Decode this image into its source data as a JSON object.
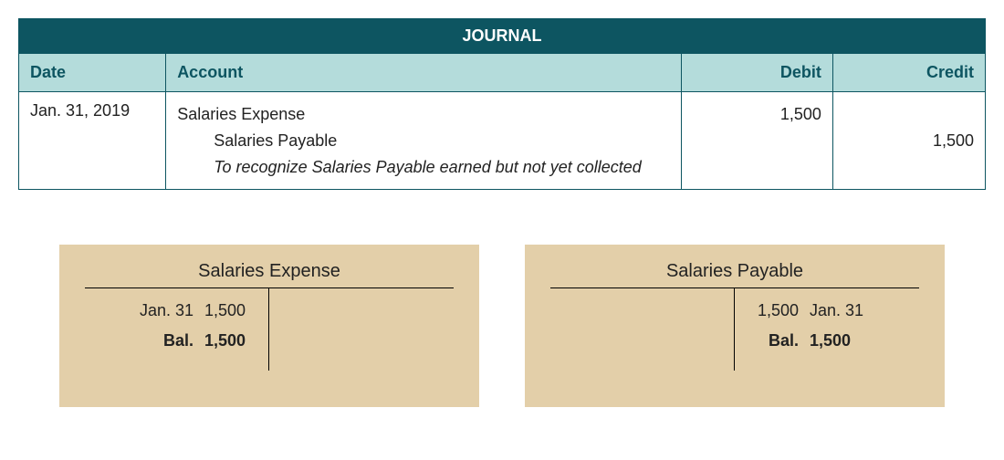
{
  "journal": {
    "title": "JOURNAL",
    "headers": {
      "date": "Date",
      "account": "Account",
      "debit": "Debit",
      "credit": "Credit"
    },
    "entry": {
      "date": "Jan. 31, 2019",
      "line1_account": "Salaries Expense",
      "line1_debit": "1,500",
      "line2_account": "Salaries Payable",
      "line2_credit": "1,500",
      "narration": "To recognize Salaries Payable earned but not yet collected"
    },
    "colors": {
      "title_bg": "#0d5561",
      "title_fg": "#ffffff",
      "header_bg": "#b4dcdb",
      "header_fg": "#0d5561",
      "border": "#0d5561"
    },
    "font_size_pt": 14
  },
  "t_accounts": {
    "background_color": "#e3cfa9",
    "left": {
      "title": "Salaries Expense",
      "debit_rows": [
        {
          "label": "Jan. 31",
          "amount": "1,500",
          "bold": false
        },
        {
          "label": "Bal.",
          "amount": "1,500",
          "bold": true
        }
      ],
      "credit_rows": []
    },
    "right": {
      "title": "Salaries Payable",
      "debit_rows": [],
      "credit_rows": [
        {
          "amount": "1,500",
          "label": "Jan. 31",
          "bold": false
        },
        {
          "amount": "Bal.",
          "label": "1,500",
          "bold": true,
          "balance": true
        }
      ]
    }
  }
}
